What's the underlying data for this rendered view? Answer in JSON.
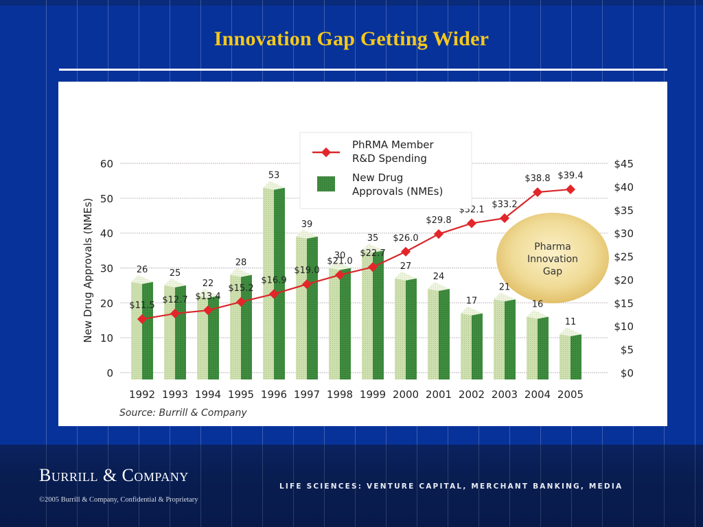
{
  "slide": {
    "title": "Innovation Gap Getting Wider",
    "colors": {
      "background": "#07329a",
      "title": "#f5c81c",
      "bar_light": "#c9dba8",
      "bar_dark": "#3e8a3e",
      "line": "#d8262a",
      "gap_bubble": "#edd58a"
    }
  },
  "chart_data": {
    "type": "bar",
    "title": "",
    "categories": [
      "1992",
      "1993",
      "1994",
      "1995",
      "1996",
      "1997",
      "1998",
      "1999",
      "2000",
      "2001",
      "2002",
      "2003",
      "2004",
      "2005"
    ],
    "series": [
      {
        "name": "New Drug Approvals (NMEs)",
        "type": "bar",
        "axis": "left",
        "values": [
          26,
          25,
          22,
          28,
          53,
          39,
          30,
          35,
          27,
          24,
          17,
          21,
          16,
          11
        ],
        "labels": [
          "26",
          "25",
          "22",
          "28",
          "53",
          "39",
          "30",
          "35",
          "27",
          "24",
          "17",
          "21",
          "16",
          "11"
        ]
      },
      {
        "name": "PhRMA Member R&D Spending",
        "type": "line",
        "axis": "right",
        "values": [
          11.5,
          12.7,
          13.4,
          15.2,
          16.9,
          19.0,
          21.0,
          22.7,
          26.0,
          29.8,
          32.1,
          33.2,
          38.8,
          39.4
        ],
        "labels": [
          "$11.5",
          "$12.7",
          "$13.4",
          "$15.2",
          "$16.9",
          "$19.0",
          "$21.0",
          "$22.7",
          "$26.0",
          "$29.8",
          "$32.1",
          "$33.2",
          "$38.8",
          "$39.4"
        ]
      }
    ],
    "ylabel": "New Drug Approvals (NMEs)",
    "xlabel": "",
    "ylim": [
      0,
      60
    ],
    "yticks": [
      "0",
      "10",
      "20",
      "30",
      "40",
      "50",
      "60"
    ],
    "y2lim": [
      0,
      45
    ],
    "y2ticks": [
      "$0",
      "$5",
      "$10",
      "$15",
      "$20",
      "$25",
      "$30",
      "$35",
      "$40",
      "$45"
    ],
    "grid": true,
    "legend": {
      "placement": "top-center",
      "entries": [
        {
          "label_line1": "PhRMA Member",
          "label_line2": "R&D Spending",
          "kind": "line-diamond"
        },
        {
          "label_line1": "New Drug",
          "label_line2": "Approvals (NMEs)",
          "kind": "bar"
        }
      ]
    },
    "annotation": {
      "line1": "Pharma",
      "line2": "Innovation",
      "line3": "Gap"
    },
    "source": "Source:  Burrill & Company"
  },
  "footer": {
    "brand": "Burrill & Company",
    "copyright": "©2005 Burrill & Company, Confidential & Proprietary",
    "tagline": "LIFE SCIENCES: VENTURE CAPITAL, MERCHANT BANKING, MEDIA"
  }
}
